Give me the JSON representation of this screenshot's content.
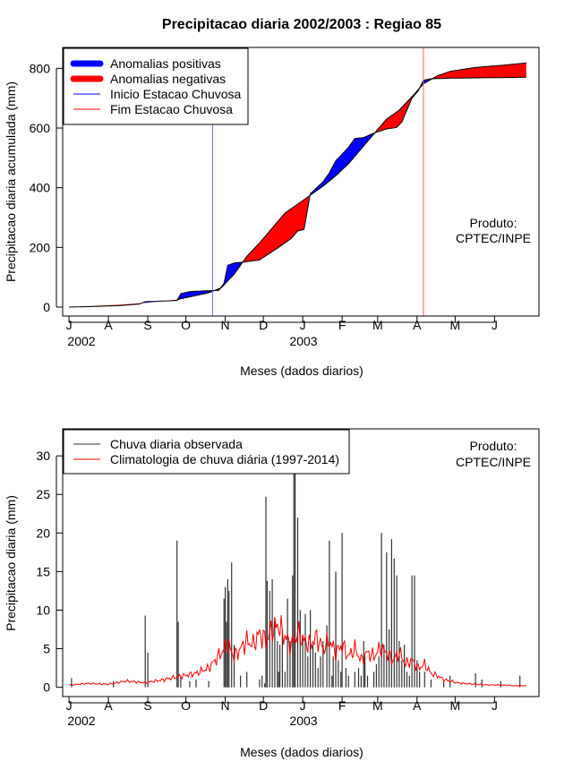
{
  "chart_data": [
    {
      "type": "area",
      "title": "Precipitacao diaria 2002/2003 : Regiao 85",
      "xlabel": "Meses (dados diarios)",
      "ylabel": "Precipitacao diaria acumulada (mm)",
      "x_month_labels": [
        "J",
        "A",
        "S",
        "O",
        "N",
        "D",
        "J",
        "F",
        "M",
        "A",
        "M",
        "J"
      ],
      "year_labels": [
        "2002",
        "2003"
      ],
      "y_ticks": [
        "0",
        "200",
        "400",
        "600",
        "800"
      ],
      "ylim": [
        -30,
        870
      ],
      "xlim_days": [
        -5,
        370
      ],
      "legend": {
        "placement": "top-left",
        "items": [
          "Anomalias positivas",
          "Anomalias negativas",
          "Inicio Estacao Chuvosa",
          "Fim Estacao Chuvosa"
        ]
      },
      "product_label": [
        "Produto:",
        "CPTEC/INPE"
      ],
      "colors": {
        "positive": "#0000ff",
        "negative": "#ff0000",
        "start_line": "#6666ff",
        "end_line": "#ff6666",
        "outline": "#000000"
      },
      "rain_season_start_day": 113,
      "rain_season_end_day": 279,
      "observed_cumulative": {
        "days": [
          0,
          20,
          40,
          55,
          60,
          85,
          88,
          95,
          110,
          118,
          122,
          125,
          130,
          140,
          150,
          165,
          175,
          180,
          185,
          190,
          200,
          205,
          210,
          220,
          225,
          232,
          240,
          250,
          258,
          262,
          270,
          275,
          279,
          285,
          300,
          320,
          340,
          360
        ],
        "values": [
          0,
          2,
          5,
          10,
          18,
          22,
          45,
          52,
          55,
          56,
          80,
          140,
          148,
          152,
          158,
          200,
          230,
          255,
          260,
          380,
          420,
          450,
          490,
          535,
          565,
          568,
          583,
          597,
          602,
          620,
          700,
          725,
          760,
          765,
          767,
          768,
          769,
          770
        ]
      },
      "climatology_cumulative": {
        "days": [
          0,
          20,
          40,
          60,
          85,
          110,
          120,
          130,
          140,
          150,
          160,
          170,
          180,
          190,
          200,
          210,
          220,
          230,
          240,
          250,
          260,
          270,
          279,
          290,
          300,
          320,
          340,
          360
        ],
        "values": [
          0,
          4,
          8,
          14,
          25,
          48,
          65,
          110,
          170,
          215,
          265,
          315,
          345,
          375,
          405,
          440,
          480,
          530,
          580,
          630,
          660,
          705,
          748,
          775,
          790,
          803,
          810,
          818
        ]
      }
    },
    {
      "type": "bar",
      "xlabel": "Meses (dados diarios)",
      "ylabel": "Precipitacao diaria (mm)",
      "x_month_labels": [
        "J",
        "A",
        "S",
        "O",
        "N",
        "D",
        "J",
        "F",
        "M",
        "A",
        "M",
        "J"
      ],
      "year_labels": [
        "2002",
        "2003"
      ],
      "y_ticks": [
        "0",
        "5",
        "10",
        "15",
        "20",
        "25",
        "30"
      ],
      "ylim": [
        -1.2,
        33.5
      ],
      "xlim_days": [
        -5,
        370
      ],
      "legend": {
        "placement": "top-left",
        "items": [
          "Chuva diaria observada",
          "Climatologia de chuva diária (1997-2014)"
        ]
      },
      "product_label": [
        "Produto:",
        "CPTEC/INPE"
      ],
      "colors": {
        "observed": "#333333",
        "climatology": "#ff0000"
      },
      "observed_daily": {
        "days": [
          2,
          35,
          60,
          62,
          85,
          86,
          88,
          95,
          100,
          110,
          122,
          123,
          124,
          125,
          126,
          128,
          130,
          135,
          140,
          150,
          152,
          154,
          155,
          156,
          158,
          160,
          162,
          164,
          165,
          166,
          168,
          170,
          172,
          174,
          176,
          177,
          178,
          180,
          182,
          184,
          186,
          188,
          190,
          192,
          194,
          196,
          198,
          200,
          203,
          205,
          207,
          208,
          210,
          212,
          214,
          215,
          218,
          220,
          225,
          228,
          230,
          232,
          233,
          235,
          240,
          242,
          244,
          246,
          248,
          250,
          252,
          254,
          256,
          258,
          260,
          262,
          264,
          266,
          268,
          270,
          272,
          274,
          276,
          280,
          285,
          295,
          300,
          320,
          325,
          340,
          355
        ],
        "values": [
          1.2,
          0.8,
          9.3,
          4.5,
          19.0,
          8.5,
          1.5,
          0.8,
          1.0,
          0.8,
          11.5,
          13.0,
          8.5,
          14.0,
          12.5,
          16.2,
          5.5,
          1.5,
          2.0,
          1.0,
          1.5,
          0.5,
          24.7,
          13.8,
          12.5,
          14.0,
          9.0,
          6.0,
          2.0,
          5.5,
          7.5,
          2.0,
          11.5,
          6.0,
          14.5,
          31.0,
          28.0,
          22.0,
          10.0,
          6.5,
          9.5,
          4.0,
          10.0,
          5.5,
          4.5,
          2.5,
          4.0,
          6.0,
          8.0,
          19.0,
          1.5,
          4.0,
          15.0,
          3.5,
          2.0,
          20.0,
          2.5,
          1.5,
          2.0,
          2.5,
          1.5,
          6.0,
          4.0,
          1.5,
          2.0,
          3.0,
          4.0,
          20.0,
          5.5,
          17.5,
          7.5,
          19.2,
          16.7,
          14.5,
          6.0,
          3.5,
          5.5,
          2.0,
          1.5,
          14.5,
          14.5,
          3.5,
          2.0,
          2.0,
          1.0,
          0.8,
          1.5,
          1.8,
          1.0,
          0.8,
          1.5
        ]
      },
      "climatology_daily": {
        "days": [
          0,
          15,
          30,
          45,
          60,
          75,
          90,
          100,
          110,
          115,
          120,
          125,
          130,
          135,
          140,
          145,
          150,
          155,
          160,
          165,
          170,
          175,
          180,
          185,
          190,
          195,
          200,
          205,
          210,
          215,
          220,
          225,
          230,
          235,
          240,
          245,
          250,
          255,
          260,
          265,
          270,
          275,
          280,
          285,
          290,
          295,
          300,
          305,
          310,
          320,
          330,
          340,
          350,
          360
        ],
        "values": [
          0.3,
          0.5,
          0.4,
          0.8,
          0.6,
          1.0,
          1.5,
          1.8,
          2.5,
          3.5,
          4.5,
          5.5,
          4.0,
          5.0,
          6.0,
          5.5,
          7.0,
          6.0,
          7.5,
          8.0,
          6.5,
          5.5,
          7.0,
          6.0,
          5.5,
          6.5,
          5.0,
          6.0,
          4.5,
          5.5,
          4.0,
          5.0,
          3.5,
          4.5,
          4.0,
          5.0,
          4.5,
          3.5,
          4.5,
          3.0,
          3.5,
          2.5,
          3.0,
          1.8,
          1.5,
          1.0,
          0.8,
          0.6,
          0.5,
          0.4,
          0.3,
          0.3,
          0.2,
          0.2
        ]
      }
    }
  ]
}
